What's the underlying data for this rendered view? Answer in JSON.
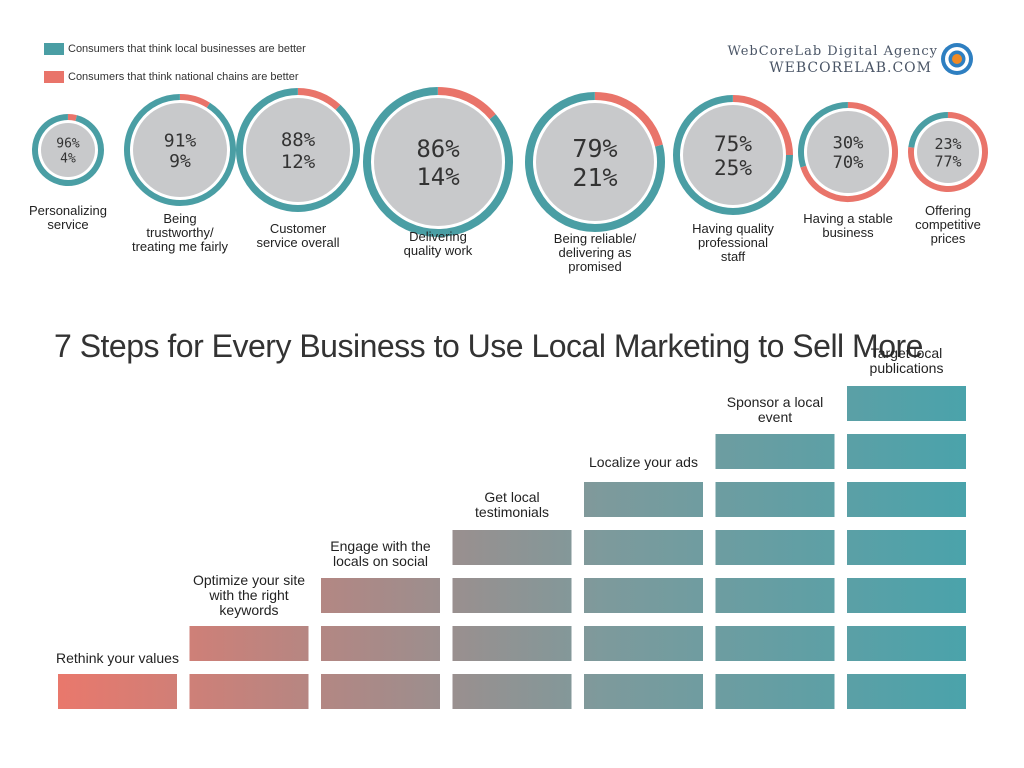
{
  "legend": {
    "local": "Consumers that think local businesses are better",
    "national": "Consumers that think national chains are better"
  },
  "brand": {
    "line1": "WebCoreLab Digital Agency",
    "line2": "WEBCORELAB.COM",
    "icon": "target-logo-icon"
  },
  "colors": {
    "local": "#4a9ea4",
    "national": "#e9746a",
    "inner": "#c8c9cb",
    "number_text": "#333333"
  },
  "chart_data": [
    {
      "type": "pie",
      "categories": [
        "Personalizing service",
        "Being trustworthy/ treating me fairly",
        "Customer service overall",
        "Delivering quality work",
        "Being reliable/ delivering as promised",
        "Having quality professional staff",
        "Having a stable business",
        "Offering competitive prices"
      ],
      "series": [
        {
          "name": "Consumers that think local businesses are better",
          "values": [
            96,
            91,
            88,
            86,
            79,
            75,
            30,
            23
          ]
        },
        {
          "name": "Consumers that think national chains are better",
          "values": [
            4,
            9,
            12,
            14,
            21,
            25,
            70,
            77
          ]
        }
      ],
      "local_labels": [
        "96%",
        "91%",
        "88%",
        "86%",
        "79%",
        "75%",
        "30%",
        "23%"
      ],
      "national_labels": [
        "4%",
        "9%",
        "12%",
        "14%",
        "21%",
        "25%",
        "70%",
        "77%"
      ],
      "legend_placement": "top-left"
    },
    {
      "type": "bar",
      "title": "7 Steps for Every Business to Use Local Marketing to Sell More",
      "categories": [
        "Rethink your values",
        "Optimize your site with the right keywords",
        "Engage with the locals on social",
        "Get local testimonials",
        "Localize your ads",
        "Sponsor a local event",
        "Target local publications"
      ],
      "values": [
        1,
        2,
        3,
        4,
        5,
        6,
        7
      ],
      "ylim": [
        0,
        7
      ],
      "grid": false
    }
  ]
}
